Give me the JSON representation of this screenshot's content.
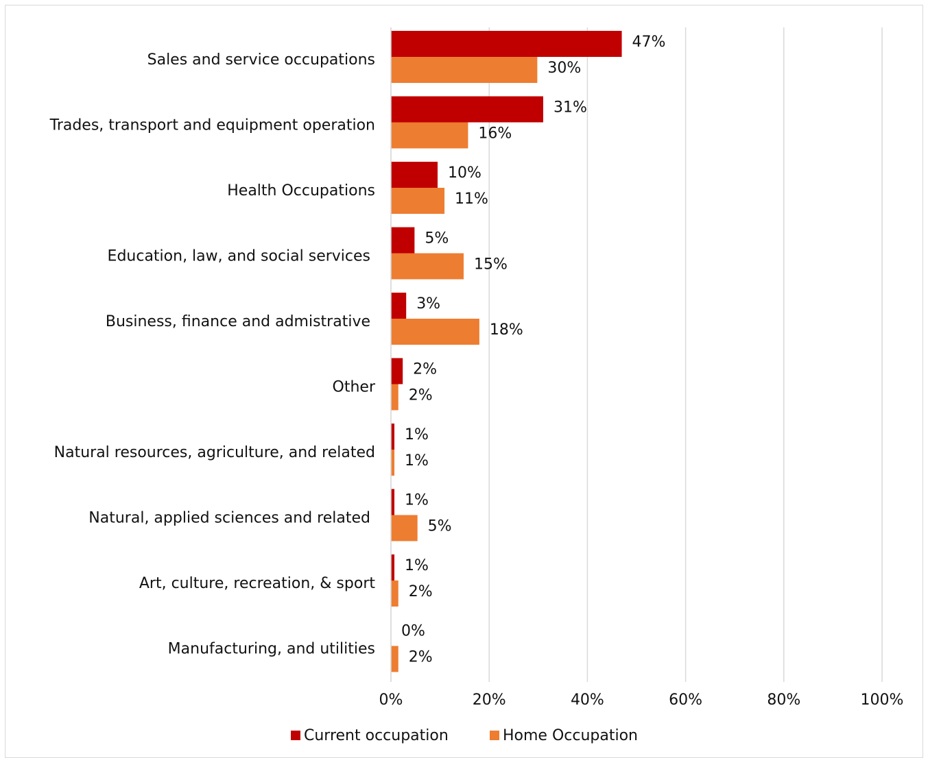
{
  "chart_data": {
    "type": "hbar",
    "categories": [
      "Sales and service occupations",
      "Trades, transport and equipment operation",
      "Health Occupations",
      "Education, law, and social services ",
      "Business, finance and admistrative ",
      "Other",
      "Natural resources, agriculture, and related",
      "Natural, applied sciences and related ",
      "Art, culture, recreation, & sport",
      "Manufacturing, and utilities"
    ],
    "series": [
      {
        "name": "Current occupation",
        "color": "#c00000",
        "values": [
          47,
          31,
          9.5,
          4.8,
          3.1,
          2.4,
          0.7,
          0.7,
          0.7,
          0
        ],
        "value_labels": [
          "47%",
          "31%",
          "10%",
          "5%",
          "3%",
          "2%",
          "1%",
          "1%",
          "1%",
          "0%"
        ]
      },
      {
        "name": "Home Occupation",
        "color": "#ed7d31",
        "values": [
          29.8,
          15.7,
          10.9,
          14.8,
          18,
          1.5,
          0.7,
          5.4,
          1.5,
          1.5
        ],
        "value_labels": [
          "30%",
          "16%",
          "11%",
          "15%",
          "18%",
          "2%",
          "1%",
          "5%",
          "2%",
          "2%"
        ]
      }
    ],
    "xlim": [
      0,
      100
    ],
    "xticks": [
      {
        "value": 0,
        "label": "0%"
      },
      {
        "value": 20,
        "label": "20%"
      },
      {
        "value": 40,
        "label": "40%"
      },
      {
        "value": 60,
        "label": "60%"
      },
      {
        "value": 80,
        "label": "80%"
      },
      {
        "value": 100,
        "label": "100%"
      }
    ],
    "grid": true,
    "legend": "bottom"
  }
}
